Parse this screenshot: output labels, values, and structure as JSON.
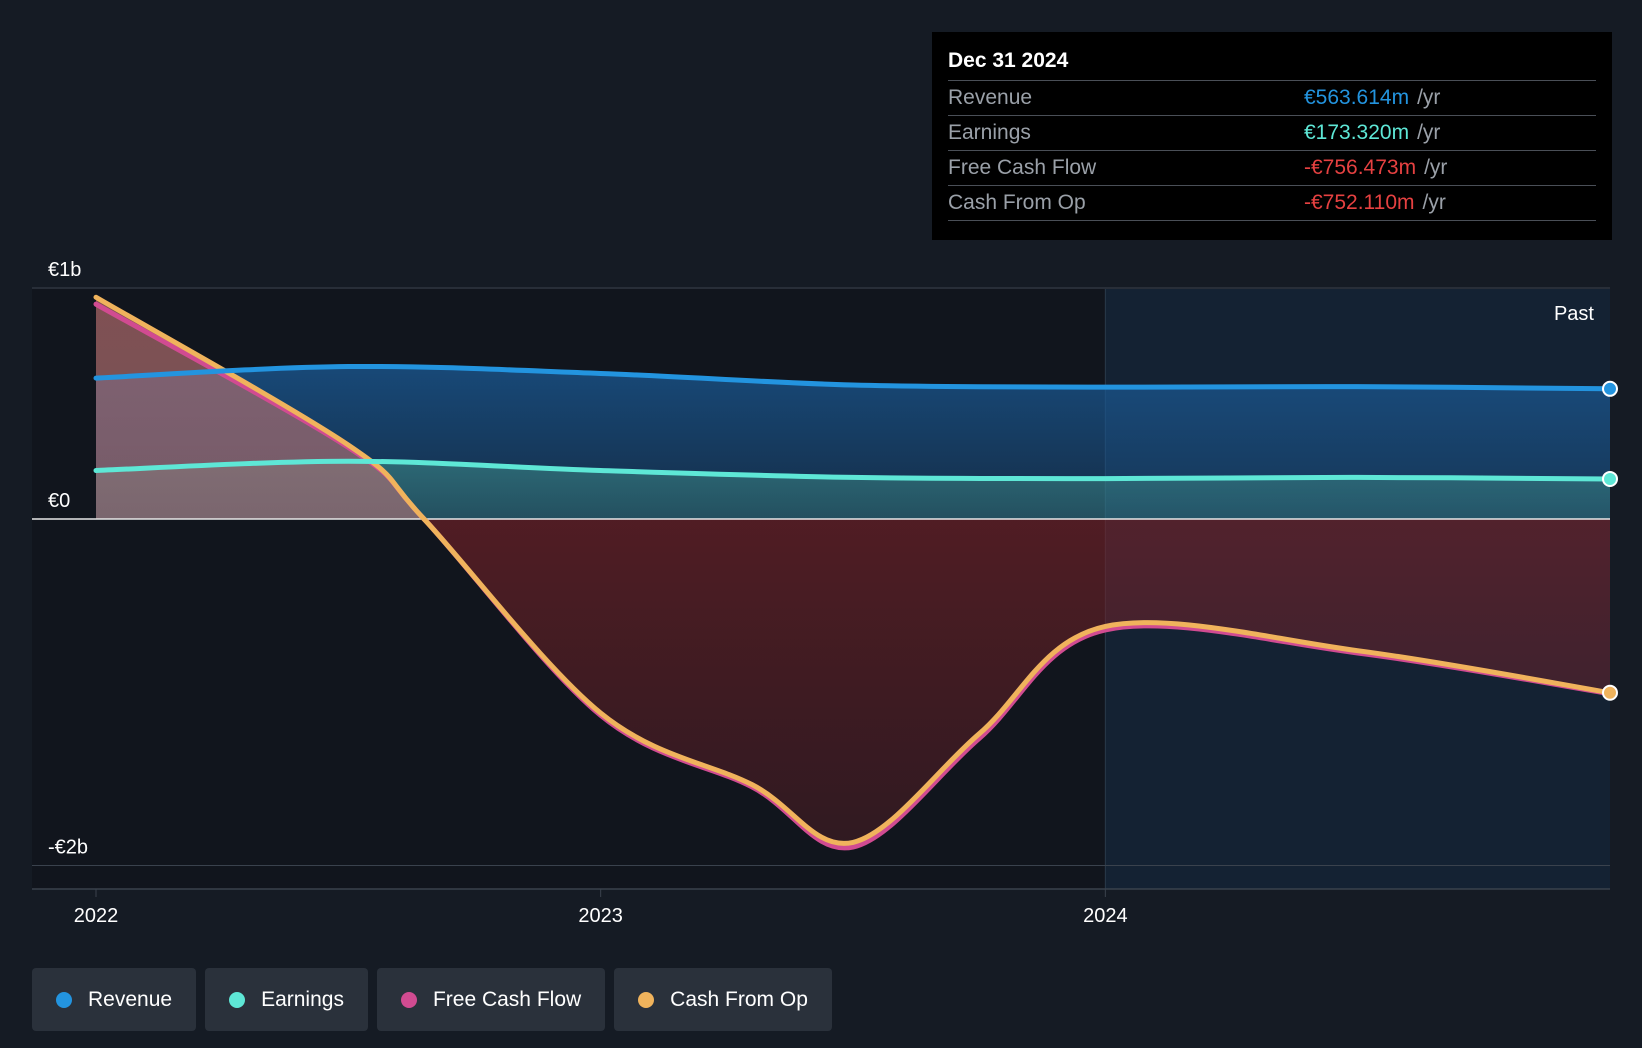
{
  "tooltip": {
    "date": "Dec 31 2024",
    "rows": [
      {
        "label": "Revenue",
        "value": "€563.614m",
        "unit": "/yr",
        "color": "#2394df"
      },
      {
        "label": "Earnings",
        "value": "€173.320m",
        "unit": "/yr",
        "color": "#5ee7d6"
      },
      {
        "label": "Free Cash Flow",
        "value": "-€756.473m",
        "unit": "/yr",
        "color": "#e64141"
      },
      {
        "label": "Cash From Op",
        "value": "-€752.110m",
        "unit": "/yr",
        "color": "#e64141"
      }
    ]
  },
  "chart_data": {
    "type": "area",
    "y_ticks": [
      {
        "value": 1,
        "label": "€1b"
      },
      {
        "value": 0,
        "label": "€0"
      },
      {
        "value": -1.5,
        "label": "-€2b"
      }
    ],
    "ylim": [
      -1.6,
      1
    ],
    "x_ticks": [
      {
        "value": 2022.0,
        "label": "2022"
      },
      {
        "value": 2023.0,
        "label": "2023"
      },
      {
        "value": 2024.0,
        "label": "2024"
      }
    ],
    "xlim": [
      2021.87,
      2025.0
    ],
    "past_start": 2024.0,
    "past_label": "Past",
    "grid": true,
    "series": [
      {
        "name": "Revenue",
        "color": "#2394df",
        "points": [
          [
            2022.0,
            0.61
          ],
          [
            2022.5,
            0.66
          ],
          [
            2023.0,
            0.63
          ],
          [
            2023.5,
            0.58
          ],
          [
            2024.0,
            0.571
          ],
          [
            2024.5,
            0.573
          ],
          [
            2025.0,
            0.5636
          ]
        ]
      },
      {
        "name": "Earnings",
        "color": "#5ee7d6",
        "points": [
          [
            2022.0,
            0.21
          ],
          [
            2022.5,
            0.25
          ],
          [
            2023.0,
            0.21
          ],
          [
            2023.5,
            0.18
          ],
          [
            2024.0,
            0.175
          ],
          [
            2024.5,
            0.18
          ],
          [
            2025.0,
            0.1733
          ]
        ]
      },
      {
        "name": "Free Cash Flow",
        "color": "#d14b91",
        "points": [
          [
            2022.0,
            0.93
          ],
          [
            2022.5,
            0.31
          ],
          [
            2022.65,
            0.0
          ],
          [
            2023.0,
            -0.85
          ],
          [
            2023.3,
            -1.16
          ],
          [
            2023.5,
            -1.42
          ],
          [
            2023.75,
            -0.95
          ],
          [
            2024.0,
            -0.48
          ],
          [
            2024.5,
            -0.58
          ],
          [
            2025.0,
            -0.7565
          ]
        ]
      },
      {
        "name": "Cash From Op",
        "color": "#f0b35c",
        "points": [
          [
            2022.0,
            0.96
          ],
          [
            2022.5,
            0.32
          ],
          [
            2022.65,
            0.0
          ],
          [
            2023.0,
            -0.84
          ],
          [
            2023.3,
            -1.15
          ],
          [
            2023.5,
            -1.4
          ],
          [
            2023.75,
            -0.93
          ],
          [
            2024.0,
            -0.465
          ],
          [
            2024.5,
            -0.57
          ],
          [
            2025.0,
            -0.7521
          ]
        ]
      }
    ]
  },
  "legend": [
    {
      "label": "Revenue",
      "color": "#2394df"
    },
    {
      "label": "Earnings",
      "color": "#5ee7d6"
    },
    {
      "label": "Free Cash Flow",
      "color": "#d14b91"
    },
    {
      "label": "Cash From Op",
      "color": "#f0b35c"
    }
  ]
}
